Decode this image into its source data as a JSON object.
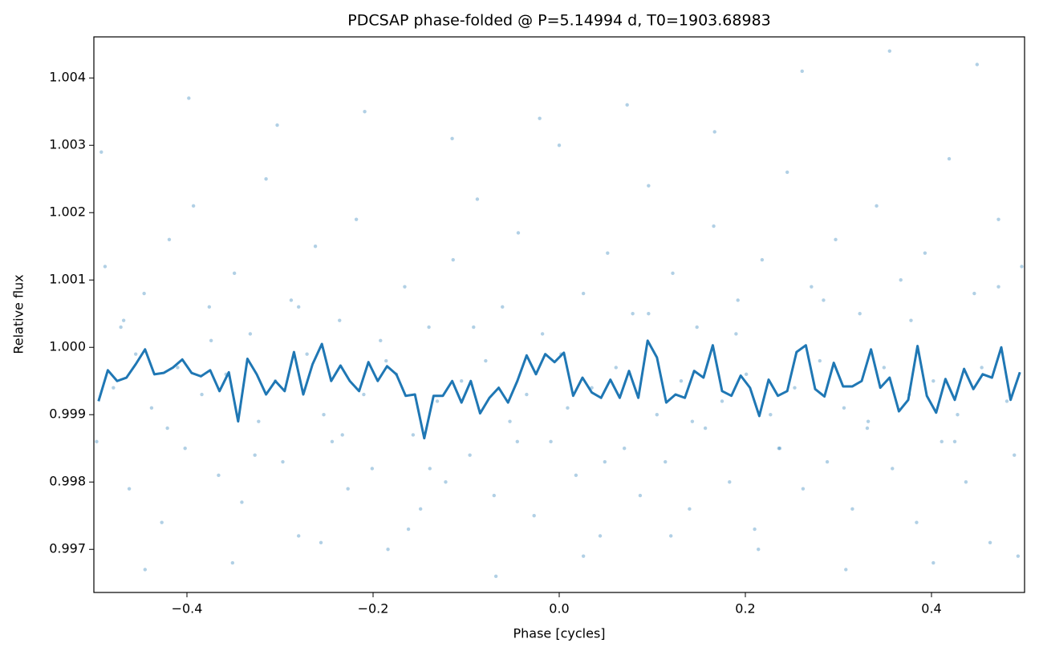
{
  "chart_data": {
    "type": "scatter",
    "title": "PDCSAP phase-folded @ P=5.14994 d, T0=1903.68983",
    "x_label": "Phase [cycles]",
    "y_label": "Relative flux",
    "xlim": [
      -0.5,
      0.5
    ],
    "ylim": [
      0.99636,
      1.00461
    ],
    "xticks": [
      {
        "value": -0.4,
        "label": "−0.4"
      },
      {
        "value": -0.2,
        "label": "−0.2"
      },
      {
        "value": 0,
        "label": "0.0"
      },
      0.2,
      0.4
    ],
    "yticks": [
      0.997,
      0.998,
      0.999,
      {
        "value": 1,
        "label": "1.000"
      },
      1.001,
      1.002,
      1.003,
      1.004
    ],
    "series": [
      {
        "type": "scatter",
        "color": "#1f77b4",
        "x": [
          -0.497,
          -0.488,
          -0.479,
          -0.471,
          -0.462,
          -0.455,
          -0.446,
          -0.438,
          -0.427,
          -0.419,
          -0.41,
          -0.402,
          -0.393,
          -0.384,
          -0.376,
          -0.366,
          -0.358,
          -0.349,
          -0.341,
          -0.332,
          -0.323,
          -0.315,
          -0.305,
          -0.297,
          -0.288,
          -0.28,
          -0.271,
          -0.262,
          -0.253,
          -0.244,
          -0.236,
          -0.227,
          -0.218,
          -0.21,
          -0.201,
          -0.192,
          -0.184,
          -0.175,
          -0.166,
          -0.157,
          -0.149,
          -0.14,
          -0.131,
          -0.122,
          -0.114,
          -0.105,
          -0.096,
          -0.088,
          -0.079,
          -0.07,
          -0.061,
          -0.053,
          -0.044,
          -0.035,
          -0.027,
          -0.018,
          -0.009,
          0.0,
          0.009,
          0.018,
          0.026,
          0.035,
          0.044,
          0.052,
          0.061,
          0.07,
          0.079,
          0.087,
          0.096,
          0.105,
          0.114,
          0.122,
          0.131,
          0.14,
          0.148,
          0.157,
          0.166,
          0.175,
          0.183,
          0.192,
          0.201,
          0.21,
          0.218,
          0.227,
          0.236,
          0.245,
          0.253,
          0.262,
          0.271,
          0.28,
          0.288,
          0.297,
          0.306,
          0.315,
          0.323,
          0.332,
          0.341,
          0.349,
          0.358,
          0.367,
          0.376,
          0.384,
          0.393,
          0.402,
          0.411,
          0.419,
          0.428,
          0.437,
          0.446,
          0.454,
          0.463,
          0.472,
          0.481,
          0.489,
          0.497,
          -0.492,
          -0.445,
          -0.398,
          -0.351,
          -0.303,
          -0.256,
          -0.209,
          -0.162,
          -0.115,
          -0.068,
          -0.021,
          0.026,
          0.073,
          0.12,
          0.167,
          0.214,
          0.261,
          0.308,
          0.355,
          0.402,
          0.449,
          0.493,
          -0.468,
          -0.421,
          -0.374,
          -0.327,
          -0.28,
          -0.233,
          -0.186,
          -0.139,
          -0.092,
          -0.045,
          0.002,
          0.049,
          0.096,
          0.143,
          0.19,
          0.237,
          0.284,
          0.331,
          0.378,
          0.425,
          0.472
        ],
        "y": [
          0.9986,
          1.0012,
          0.9994,
          1.0003,
          0.9979,
          0.9999,
          1.0008,
          0.9991,
          0.9974,
          1.0016,
          0.9997,
          0.9985,
          1.0021,
          0.9993,
          1.0006,
          0.9981,
          0.9996,
          1.0011,
          0.9977,
          1.0002,
          0.9989,
          1.0025,
          0.9995,
          0.9983,
          1.0007,
          0.9972,
          0.9999,
          1.0015,
          0.999,
          0.9986,
          1.0004,
          0.9979,
          1.0019,
          0.9993,
          0.9982,
          1.0001,
          0.997,
          0.9996,
          1.0009,
          0.9987,
          0.9976,
          1.0003,
          0.9992,
          0.998,
          1.0013,
          0.9995,
          0.9984,
          1.0022,
          0.9998,
          0.9978,
          1.0006,
          0.9989,
          1.0017,
          0.9993,
          0.9975,
          1.0002,
          0.9986,
          1.003,
          0.9991,
          0.9981,
          1.0008,
          0.9994,
          0.9972,
          1.0014,
          0.9997,
          0.9985,
          1.0005,
          0.9978,
          1.0024,
          0.999,
          0.9983,
          1.0011,
          0.9995,
          0.9976,
          1.0003,
          0.9988,
          1.0018,
          0.9992,
          0.998,
          1.0007,
          0.9996,
          0.9973,
          1.0013,
          0.999,
          0.9985,
          1.0026,
          0.9994,
          0.9979,
          1.0009,
          0.9998,
          0.9983,
          1.0016,
          0.9991,
          0.9976,
          1.0005,
          0.9989,
          1.0021,
          0.9997,
          0.9982,
          1.001,
          0.9993,
          0.9974,
          1.0014,
          0.9995,
          0.9986,
          1.0028,
          0.999,
          0.998,
          1.0008,
          0.9997,
          0.9971,
          1.0019,
          0.9992,
          0.9984,
          1.0012,
          1.0029,
          0.9967,
          1.0037,
          0.9968,
          1.0033,
          0.9971,
          1.0035,
          0.9973,
          1.0031,
          0.9966,
          1.0034,
          0.9969,
          1.0036,
          0.9972,
          1.0032,
          0.997,
          1.0041,
          0.9967,
          1.0044,
          0.9968,
          1.0042,
          0.9969,
          1.0004,
          0.9988,
          1.0001,
          0.9984,
          1.0006,
          0.9987,
          0.9998,
          0.9982,
          1.0003,
          0.9986,
          0.9999,
          0.9983,
          1.0005,
          0.9989,
          1.0002,
          0.9985,
          1.0007,
          0.9988,
          1.0004,
          0.9986,
          1.0009
        ]
      },
      {
        "type": "line",
        "color": "#1f77b4",
        "x": [
          -0.495,
          -0.485,
          -0.475,
          -0.465,
          -0.455,
          -0.445,
          -0.435,
          -0.425,
          -0.415,
          -0.405,
          -0.395,
          -0.385,
          -0.375,
          -0.365,
          -0.355,
          -0.345,
          -0.335,
          -0.325,
          -0.315,
          -0.305,
          -0.295,
          -0.285,
          -0.275,
          -0.265,
          -0.255,
          -0.245,
          -0.235,
          -0.225,
          -0.215,
          -0.205,
          -0.195,
          -0.185,
          -0.175,
          -0.165,
          -0.155,
          -0.145,
          -0.135,
          -0.125,
          -0.115,
          -0.105,
          -0.095,
          -0.085,
          -0.075,
          -0.065,
          -0.055,
          -0.045,
          -0.035,
          -0.025,
          -0.015,
          -0.005,
          0.005,
          0.015,
          0.025,
          0.035,
          0.045,
          0.055,
          0.065,
          0.075,
          0.085,
          0.095,
          0.105,
          0.115,
          0.125,
          0.135,
          0.145,
          0.155,
          0.165,
          0.175,
          0.185,
          0.195,
          0.205,
          0.215,
          0.225,
          0.235,
          0.245,
          0.255,
          0.265,
          0.275,
          0.285,
          0.295,
          0.305,
          0.315,
          0.325,
          0.335,
          0.345,
          0.355,
          0.365,
          0.375,
          0.385,
          0.395,
          0.405,
          0.415,
          0.425,
          0.435,
          0.445,
          0.455,
          0.465,
          0.475,
          0.485,
          0.495
        ],
        "y": [
          0.9992,
          0.99966,
          0.9995,
          0.99955,
          0.99975,
          0.99997,
          0.9996,
          0.99962,
          0.9997,
          0.99982,
          0.99962,
          0.99957,
          0.99966,
          0.99935,
          0.99963,
          0.9989,
          0.99983,
          0.9996,
          0.9993,
          0.9995,
          0.99935,
          0.99993,
          0.9993,
          0.99975,
          1.00005,
          0.9995,
          0.99973,
          0.9995,
          0.99935,
          0.99978,
          0.9995,
          0.99972,
          0.9996,
          0.99928,
          0.9993,
          0.99865,
          0.99928,
          0.99928,
          0.9995,
          0.99918,
          0.9995,
          0.99902,
          0.99925,
          0.9994,
          0.99918,
          0.9995,
          0.99988,
          0.9996,
          0.9999,
          0.99978,
          0.99992,
          0.99928,
          0.99955,
          0.99933,
          0.99925,
          0.99952,
          0.99925,
          0.99965,
          0.99925,
          1.0001,
          0.99985,
          0.99918,
          0.9993,
          0.99925,
          0.99965,
          0.99955,
          1.00003,
          0.99935,
          0.99928,
          0.99958,
          0.9994,
          0.99898,
          0.99952,
          0.99928,
          0.99935,
          0.99993,
          1.00003,
          0.99938,
          0.99927,
          0.99977,
          0.99942,
          0.99942,
          0.9995,
          0.99997,
          0.9994,
          0.99955,
          0.99905,
          0.99922,
          1.00002,
          0.99928,
          0.99903,
          0.99953,
          0.99922,
          0.99968,
          0.99938,
          0.9996,
          0.99955,
          1.0,
          0.99922,
          0.99963
        ]
      }
    ]
  }
}
